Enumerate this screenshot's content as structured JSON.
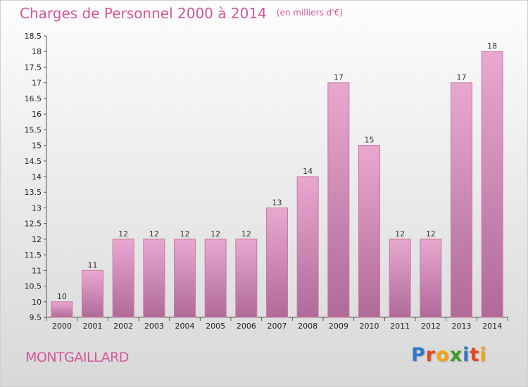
{
  "header": {
    "title": "Charges de Personnel 2000 à 2014",
    "subtitle": "(en milliers d'€)"
  },
  "footer": {
    "commune": "MONTGAILLARD",
    "logo_letters": [
      "P",
      "r",
      "o",
      "x",
      "i",
      "t",
      "i"
    ]
  },
  "colors": {
    "accent": "#d4569b",
    "bar_top": "#e8a8d0",
    "bar_bottom": "#b06a98",
    "bar_stroke": "#c9799f",
    "logo": [
      "#2f78c8",
      "#e8431f",
      "#f5a313",
      "#3a9f2e",
      "#2f78c8",
      "#e8431f",
      "#f5a313"
    ]
  },
  "chart_data": {
    "type": "bar",
    "categories": [
      "2000",
      "2001",
      "2002",
      "2003",
      "2004",
      "2005",
      "2006",
      "2007",
      "2008",
      "2009",
      "2010",
      "2011",
      "2012",
      "2013",
      "2014"
    ],
    "values": [
      10,
      11,
      12,
      12,
      12,
      12,
      12,
      13,
      14,
      17,
      15,
      12,
      12,
      17,
      18
    ],
    "value_labels": [
      "10",
      "11",
      "12",
      "12",
      "12",
      "12",
      "12",
      "13",
      "14",
      "17",
      "15",
      "12",
      "12",
      "17",
      "18"
    ],
    "title": "Charges de Personnel 2000 à 2014",
    "subtitle": "(en milliers d'€)",
    "ylim": [
      9.5,
      18.5
    ],
    "yticks": [
      9.5,
      10,
      10.5,
      11,
      11.5,
      12,
      12.5,
      13,
      13.5,
      14,
      14.5,
      15,
      15.5,
      16,
      16.5,
      17,
      17.5,
      18,
      18.5
    ],
    "ytick_labels": [
      "9.5",
      "10",
      "10.5",
      "11",
      "11.5",
      "12",
      "12.5",
      "13",
      "13.5",
      "14",
      "14.5",
      "15",
      "15.5",
      "16",
      "16.5",
      "17",
      "17.5",
      "18",
      "18.5"
    ],
    "grid": false,
    "legend": "none"
  }
}
